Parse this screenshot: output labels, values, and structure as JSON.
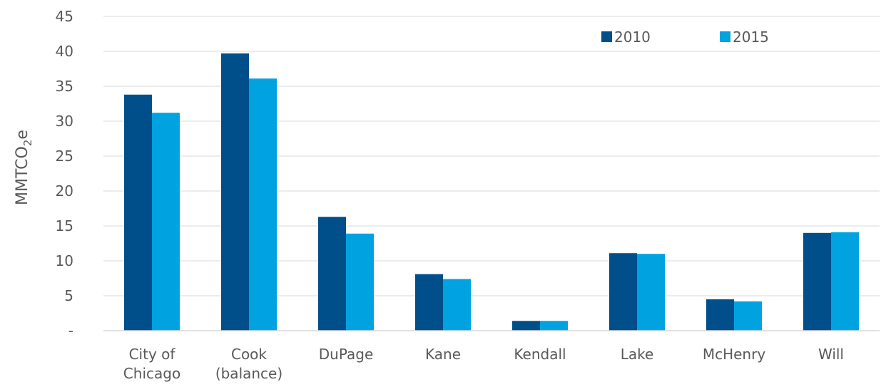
{
  "chart_data": {
    "type": "bar",
    "title": "",
    "xlabel": "",
    "ylabel_main": "MMTCO",
    "ylabel_sub": "2",
    "ylabel_suffix": "e",
    "ylim": [
      0,
      45
    ],
    "yticks": [
      {
        "value": 0,
        "label": "-"
      },
      {
        "value": 5,
        "label": "5"
      },
      {
        "value": 10,
        "label": "10"
      },
      {
        "value": 15,
        "label": "15"
      },
      {
        "value": 20,
        "label": "20"
      },
      {
        "value": 25,
        "label": "25"
      },
      {
        "value": 30,
        "label": "30"
      },
      {
        "value": 35,
        "label": "35"
      },
      {
        "value": 40,
        "label": "40"
      },
      {
        "value": 45,
        "label": "45"
      }
    ],
    "categories": [
      [
        "City of",
        "Chicago"
      ],
      [
        "Cook",
        "(balance)"
      ],
      [
        "DuPage"
      ],
      [
        "Kane"
      ],
      [
        "Kendall"
      ],
      [
        "Lake"
      ],
      [
        "McHenry"
      ],
      [
        "Will"
      ]
    ],
    "series": [
      {
        "name": "2010",
        "color": "#004f8a",
        "values": [
          33.8,
          39.7,
          16.3,
          8.1,
          1.4,
          11.1,
          4.5,
          14.0
        ]
      },
      {
        "name": "2015",
        "color": "#00a3e0",
        "values": [
          31.2,
          36.1,
          13.9,
          7.4,
          1.4,
          11.0,
          4.2,
          14.1
        ]
      }
    ],
    "legend_position": "top-right",
    "grid": true,
    "grid_color": "#d9d9d9"
  }
}
